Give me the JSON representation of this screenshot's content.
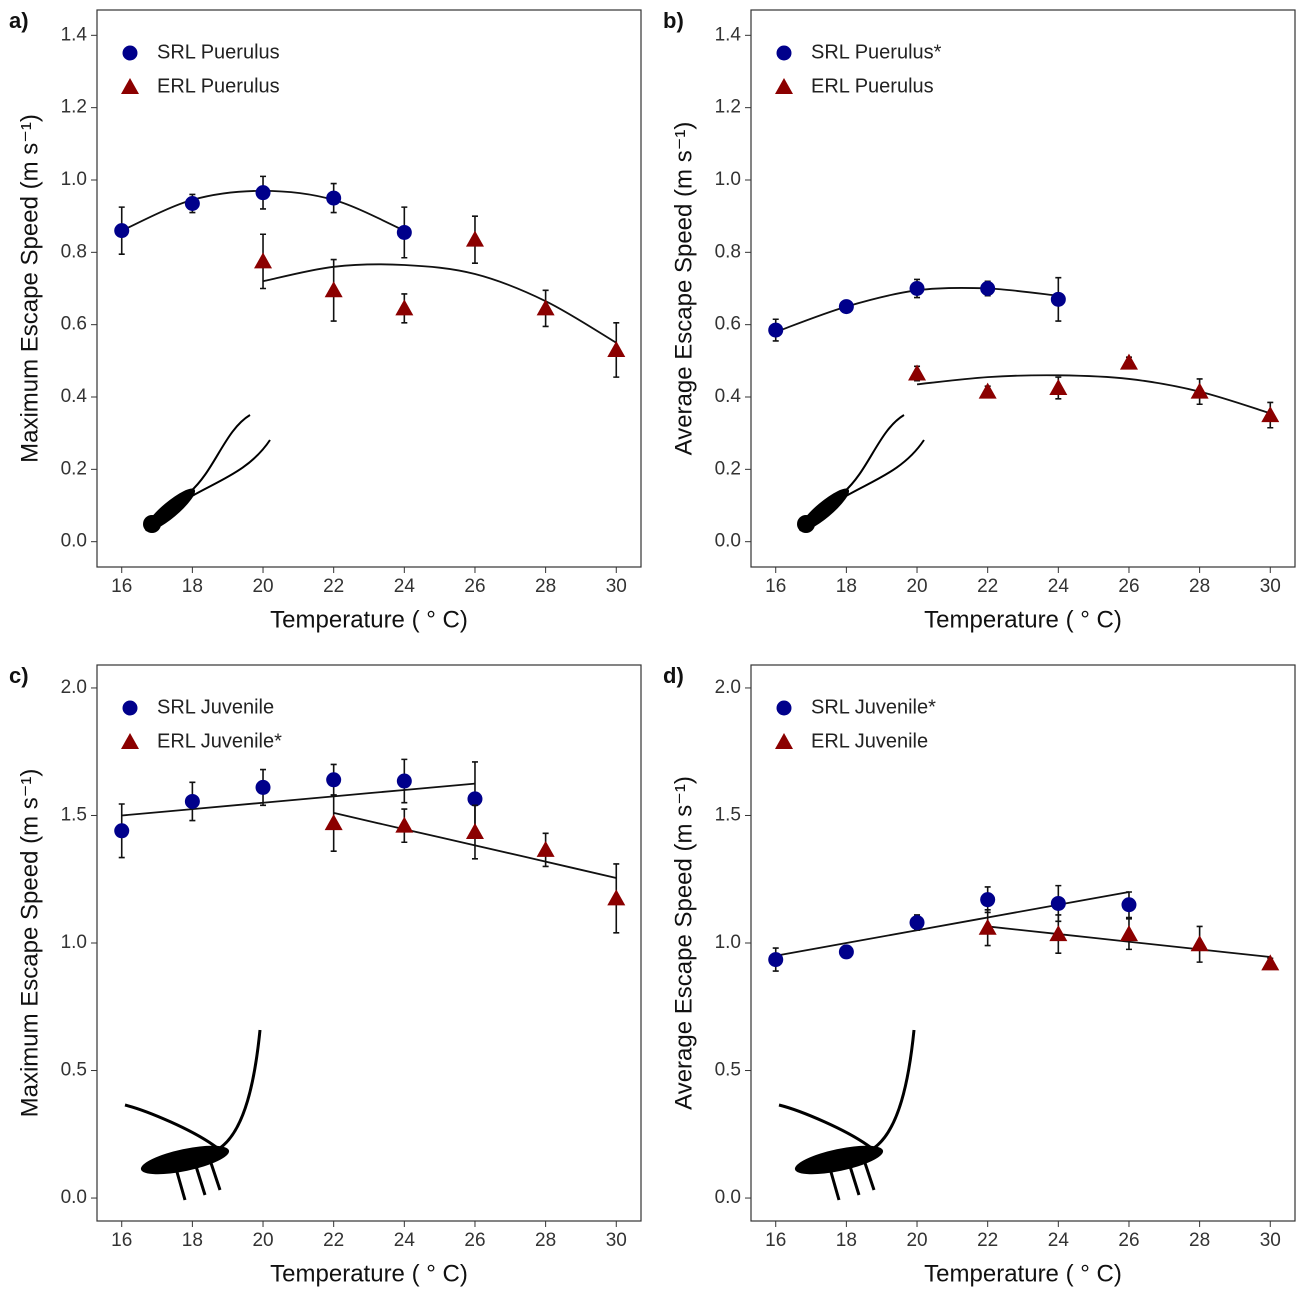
{
  "chart_data": [
    {
      "type": "scatter",
      "panel": "a)",
      "xlabel": "Temperature ( ° C)",
      "ylabel": "Maximum Escape Speed (m s⁻¹)",
      "xlim": [
        15.3,
        30.7
      ],
      "ylim": [
        -0.07,
        1.47
      ],
      "xticks": [
        16,
        18,
        20,
        22,
        24,
        26,
        28,
        30
      ],
      "yticks": [
        {
          "value": 0,
          "label": "0.0"
        },
        0.2,
        0.4,
        0.6,
        0.8,
        {
          "value": 1,
          "label": "1.0"
        },
        1.2,
        1.4
      ],
      "legend": "upper left",
      "series": [
        {
          "name": "SRL Puerulus",
          "color": "#00008b",
          "marker": "circle",
          "x": [
            16,
            18,
            20,
            22,
            24
          ],
          "values": [
            0.86,
            0.935,
            0.965,
            0.95,
            0.855
          ],
          "errors": [
            0.065,
            0.025,
            0.045,
            0.04,
            0.07
          ],
          "fit": [
            0.86,
            0.945,
            0.97,
            0.945,
            0.86
          ]
        },
        {
          "name": "ERL Puerulus",
          "color": "#8b0000",
          "marker": "triangle",
          "x": [
            20,
            22,
            24,
            26,
            28,
            30
          ],
          "values": [
            0.775,
            0.695,
            0.645,
            0.835,
            0.645,
            0.53
          ],
          "errors": [
            0.075,
            0.085,
            0.04,
            0.065,
            0.05,
            0.075
          ],
          "fit": [
            0.72,
            0.76,
            0.765,
            0.74,
            0.665,
            0.55
          ]
        }
      ]
    },
    {
      "type": "scatter",
      "panel": "b)",
      "xlabel": "Temperature ( ° C)",
      "ylabel": "Average Escape Speed (m s⁻¹)",
      "xlim": [
        15.3,
        30.7
      ],
      "ylim": [
        -0.07,
        1.47
      ],
      "xticks": [
        16,
        18,
        20,
        22,
        24,
        26,
        28,
        30
      ],
      "yticks": [
        {
          "value": 0,
          "label": "0.0"
        },
        0.2,
        0.4,
        0.6,
        0.8,
        {
          "value": 1,
          "label": "1.0"
        },
        1.2,
        1.4
      ],
      "legend": "upper left",
      "series": [
        {
          "name": "SRL Puerulus*",
          "color": "#00008b",
          "marker": "circle",
          "x": [
            16,
            18,
            20,
            22,
            24
          ],
          "values": [
            0.585,
            0.65,
            0.7,
            0.7,
            0.67
          ],
          "errors": [
            0.03,
            0.015,
            0.025,
            0.02,
            0.06
          ],
          "fit": [
            0.58,
            0.65,
            0.695,
            0.7,
            0.68
          ]
        },
        {
          "name": "ERL Puerulus",
          "color": "#8b0000",
          "marker": "triangle",
          "x": [
            20,
            22,
            24,
            26,
            28,
            30
          ],
          "values": [
            0.465,
            0.415,
            0.425,
            0.495,
            0.415,
            0.35
          ],
          "errors": [
            0.02,
            0.015,
            0.03,
            0.015,
            0.035,
            0.035
          ],
          "fit": [
            0.435,
            0.455,
            0.46,
            0.45,
            0.415,
            0.355
          ]
        }
      ]
    },
    {
      "type": "scatter",
      "panel": "c)",
      "xlabel": "Temperature ( ° C)",
      "ylabel": "Maximum Escape Speed (m s⁻¹)",
      "xlim": [
        15.3,
        30.7
      ],
      "ylim": [
        -0.09,
        2.09
      ],
      "xticks": [
        16,
        18,
        20,
        22,
        24,
        26,
        28,
        30
      ],
      "yticks": [
        {
          "value": 0,
          "label": "0.0"
        },
        0.5,
        {
          "value": 1,
          "label": "1.0"
        },
        1.5,
        {
          "value": 2,
          "label": "2.0"
        }
      ],
      "legend": "upper left",
      "series": [
        {
          "name": "SRL Juvenile",
          "color": "#00008b",
          "marker": "circle",
          "x": [
            16,
            18,
            20,
            22,
            24,
            26
          ],
          "values": [
            1.44,
            1.555,
            1.61,
            1.64,
            1.635,
            1.565
          ],
          "errors": [
            0.105,
            0.075,
            0.07,
            0.06,
            0.085,
            0.145
          ],
          "fit": [
            1.5,
            1.525,
            1.55,
            1.575,
            1.6,
            1.625
          ]
        },
        {
          "name": "ERL Juvenile*",
          "color": "#8b0000",
          "marker": "triangle",
          "x": [
            22,
            24,
            26,
            28,
            30
          ],
          "values": [
            1.47,
            1.46,
            1.435,
            1.365,
            1.175
          ],
          "errors": [
            0.11,
            0.065,
            0.105,
            0.065,
            0.135
          ],
          "fit": [
            1.51,
            1.446,
            1.383,
            1.319,
            1.255
          ]
        }
      ]
    },
    {
      "type": "scatter",
      "panel": "d)",
      "xlabel": "Temperature ( ° C)",
      "ylabel": "Average Escape Speed (m s⁻¹)",
      "xlim": [
        15.3,
        30.7
      ],
      "ylim": [
        -0.09,
        2.09
      ],
      "xticks": [
        16,
        18,
        20,
        22,
        24,
        26,
        28,
        30
      ],
      "yticks": [
        {
          "value": 0,
          "label": "0.0"
        },
        0.5,
        {
          "value": 1,
          "label": "1.0"
        },
        1.5,
        {
          "value": 2,
          "label": "2.0"
        }
      ],
      "legend": "upper left",
      "series": [
        {
          "name": "SRL Juvenile*",
          "color": "#00008b",
          "marker": "circle",
          "x": [
            16,
            18,
            20,
            22,
            24,
            26
          ],
          "values": [
            0.935,
            0.965,
            1.08,
            1.17,
            1.155,
            1.15
          ],
          "errors": [
            0.045,
            0.02,
            0.03,
            0.05,
            0.07,
            0.05
          ],
          "fit": [
            0.95,
            1.0,
            1.05,
            1.1,
            1.15,
            1.2
          ]
        },
        {
          "name": "ERL Juvenile",
          "color": "#8b0000",
          "marker": "triangle",
          "x": [
            22,
            24,
            26,
            28,
            30
          ],
          "values": [
            1.06,
            1.035,
            1.035,
            0.995,
            0.92
          ],
          "errors": [
            0.07,
            0.075,
            0.06,
            0.07,
            0.02
          ],
          "fit": [
            1.065,
            1.035,
            1.005,
            0.975,
            0.945
          ]
        }
      ]
    }
  ]
}
